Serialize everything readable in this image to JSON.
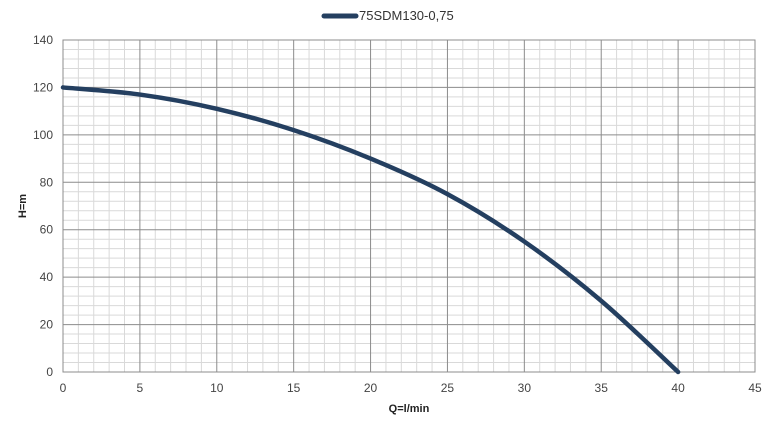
{
  "chart_data": {
    "type": "line",
    "title": "",
    "xlabel": "Q=l/min",
    "ylabel": "H=m",
    "xlim": [
      0,
      45
    ],
    "ylim": [
      0,
      140
    ],
    "x_ticks": [
      0,
      5,
      10,
      15,
      20,
      25,
      30,
      35,
      40,
      45
    ],
    "y_ticks": [
      0,
      20,
      40,
      60,
      80,
      100,
      120,
      140
    ],
    "x_tick_labels": [
      "0",
      "5",
      "10",
      "15",
      "20",
      "25",
      "30",
      "35",
      "40",
      "45"
    ],
    "y_tick_labels": [
      "0",
      "20",
      "40",
      "60",
      "80",
      "100",
      "120",
      "140"
    ],
    "grid": true,
    "minor_grid": true,
    "legend_position": "top",
    "series": [
      {
        "name": "75SDM130-0,75",
        "color": "#243f60",
        "x": [
          0,
          5,
          10,
          15,
          20,
          25,
          30,
          35,
          40
        ],
        "y": [
          120,
          117,
          111,
          102,
          90,
          75,
          55,
          30,
          0
        ]
      }
    ]
  }
}
